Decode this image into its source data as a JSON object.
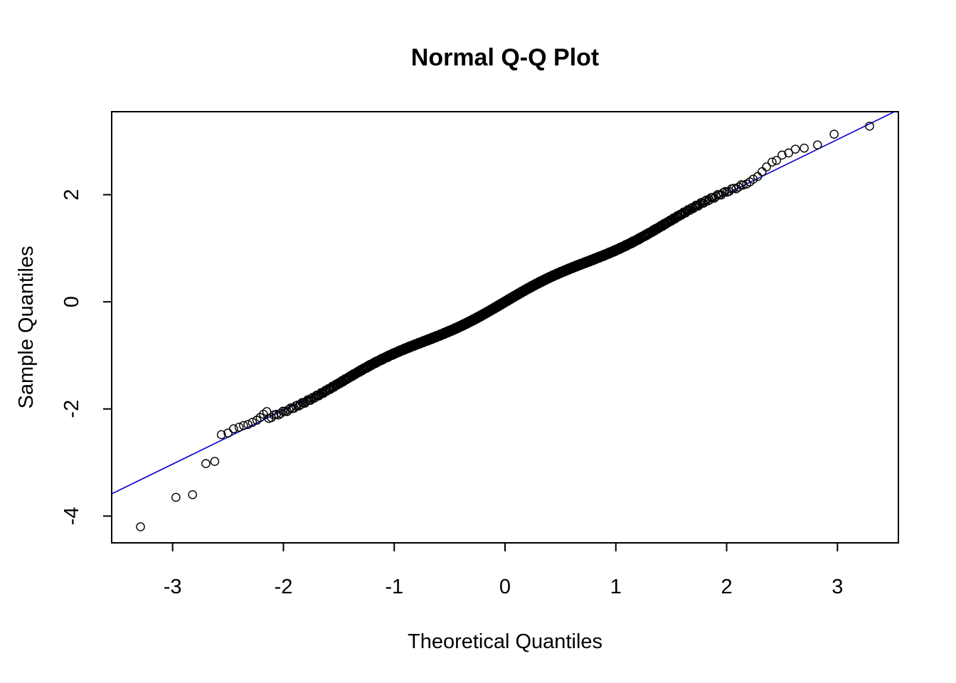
{
  "chart_data": {
    "type": "scatter",
    "title": "Normal Q-Q Plot",
    "xlabel": "Theoretical Quantiles",
    "ylabel": "Sample Quantiles",
    "xlim": [
      -3.55,
      3.55
    ],
    "ylim": [
      -4.5,
      3.55
    ],
    "x_ticks": [
      -3,
      -2,
      -1,
      0,
      1,
      2,
      3
    ],
    "x_tick_labels": [
      "-3",
      "-2",
      "-1",
      "0",
      "1",
      "2",
      "3"
    ],
    "y_ticks": [
      -4,
      -2,
      0,
      2
    ],
    "y_tick_labels": [
      "-4",
      "-2",
      "0",
      "2"
    ],
    "grid": false,
    "reference_line": {
      "intercept": 0.0,
      "slope": 1.01,
      "color": "#0000CD"
    },
    "point_color": "#000000",
    "points_n": 1000,
    "tail_points": [
      [
        -3.29,
        -4.2
      ],
      [
        -2.97,
        -3.65
      ],
      [
        -2.82,
        -3.6
      ],
      [
        -2.7,
        -3.02
      ],
      [
        -2.62,
        -2.98
      ],
      [
        -2.56,
        -2.48
      ],
      [
        -2.5,
        -2.45
      ],
      [
        -2.45,
        -2.37
      ],
      [
        -2.4,
        -2.34
      ],
      [
        -2.36,
        -2.31
      ],
      [
        -2.32,
        -2.29
      ],
      [
        -2.28,
        -2.25
      ],
      [
        -2.24,
        -2.21
      ],
      [
        -2.21,
        -2.16
      ],
      [
        -2.18,
        -2.1
      ],
      [
        -2.15,
        -2.05
      ],
      [
        2.15,
        2.18
      ],
      [
        2.18,
        2.2
      ],
      [
        2.21,
        2.24
      ],
      [
        2.24,
        2.29
      ],
      [
        2.28,
        2.34
      ],
      [
        2.32,
        2.43
      ],
      [
        2.36,
        2.52
      ],
      [
        2.41,
        2.61
      ],
      [
        2.45,
        2.64
      ],
      [
        2.5,
        2.74
      ],
      [
        2.56,
        2.78
      ],
      [
        2.62,
        2.85
      ],
      [
        2.7,
        2.87
      ],
      [
        2.82,
        2.93
      ],
      [
        2.97,
        3.13
      ],
      [
        3.29,
        3.28
      ]
    ]
  }
}
